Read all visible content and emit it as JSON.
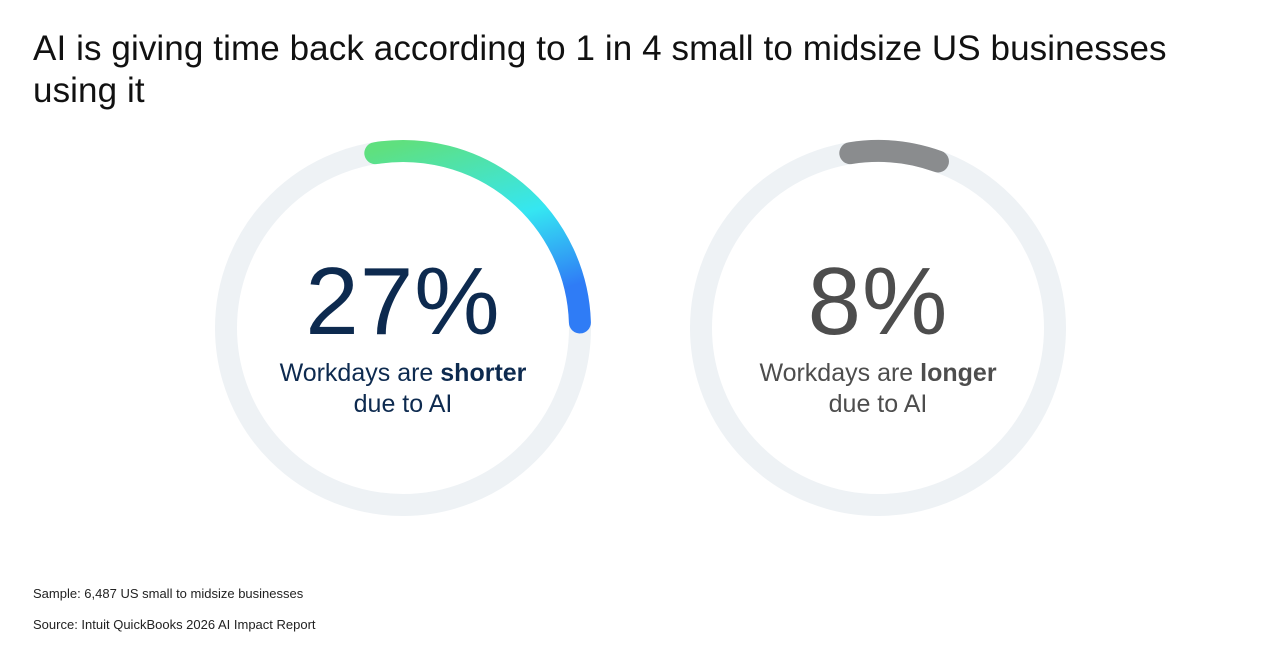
{
  "title": "AI is giving time back according to 1 in 4 small to midsize US businesses using it",
  "chart_data": {
    "type": "donut",
    "title": "AI is giving time back according to 1 in 4 small to midsize US businesses using it",
    "series": [
      {
        "value": 27,
        "value_label": "27%",
        "caption_prefix": "Workdays are ",
        "caption_emphasis": "shorter",
        "caption_suffix": "due to AI",
        "arc_colors": [
          "#5fe07f",
          "#35e6f2",
          "#2f7cf6"
        ],
        "text_color": "#0d2a4f"
      },
      {
        "value": 8,
        "value_label": "8%",
        "caption_prefix": "Workdays are ",
        "caption_emphasis": "longer",
        "caption_suffix": "due to AI",
        "arc_colors": [
          "#8a8c8e"
        ],
        "text_color": "#4d4d4d"
      }
    ],
    "max": 100,
    "track_color": "#eef2f5"
  },
  "footnotes": {
    "sample": "Sample: 6,487 US small to midsize businesses",
    "source": "Source: Intuit QuickBooks 2026 AI Impact Report"
  }
}
